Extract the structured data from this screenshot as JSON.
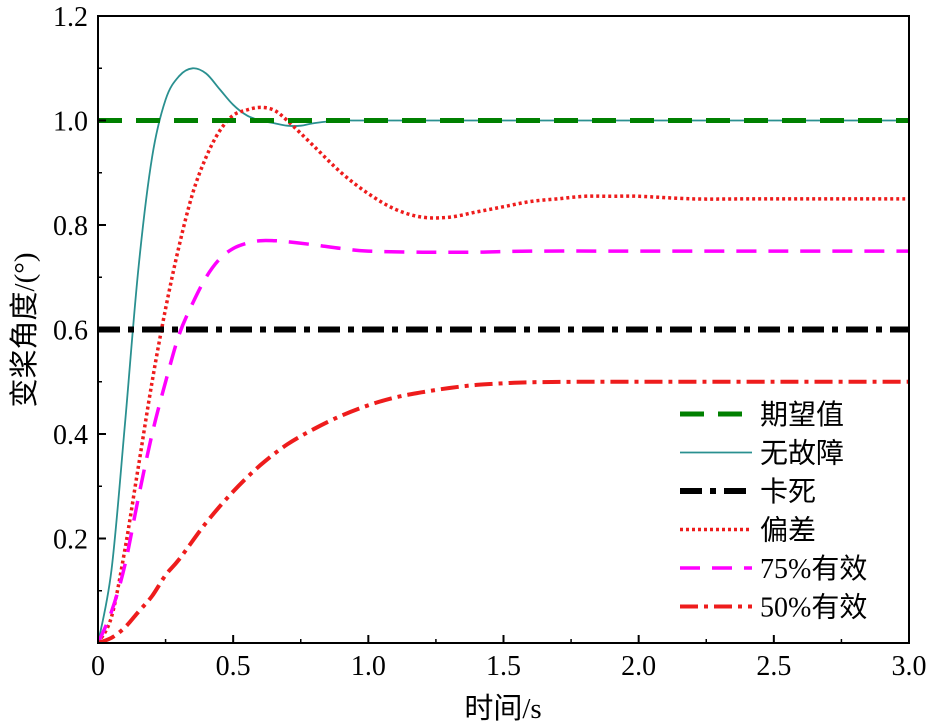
{
  "chart_data": {
    "type": "line",
    "xlabel": "时间/s",
    "ylabel": "变桨角度/(°)",
    "xlim": [
      0,
      3.0
    ],
    "ylim": [
      0,
      1.2
    ],
    "xticks": [
      {
        "value": 0,
        "label": "0"
      },
      {
        "value": 0.5,
        "label": "0.5"
      },
      {
        "value": 1.0,
        "label": "1.0"
      },
      {
        "value": 1.5,
        "label": "1.5"
      },
      {
        "value": 2.0,
        "label": "2.0"
      },
      {
        "value": 2.5,
        "label": "2.5"
      },
      {
        "value": 3.0,
        "label": "3.0"
      }
    ],
    "yticks": [
      {
        "value": 0.2,
        "label": "0.2"
      },
      {
        "value": 0.4,
        "label": "0.4"
      },
      {
        "value": 0.6,
        "label": "0.6"
      },
      {
        "value": 0.8,
        "label": "0.8"
      },
      {
        "value": 1.0,
        "label": "1.0"
      },
      {
        "value": 1.2,
        "label": "1.2"
      }
    ],
    "grid": false,
    "legend_position": "bottom-right",
    "series": [
      {
        "name": "期望值",
        "color": "#008000",
        "style": "dashed",
        "x": [
          0,
          3.0
        ],
        "y": [
          1.0,
          1.0
        ]
      },
      {
        "name": "无故障",
        "color": "#2a9090",
        "style": "solid",
        "x": [
          0,
          0.05,
          0.1,
          0.15,
          0.2,
          0.25,
          0.3,
          0.35,
          0.4,
          0.45,
          0.5,
          0.55,
          0.6,
          0.65,
          0.7,
          0.75,
          0.8,
          0.9,
          1.0,
          1.5,
          2.0,
          2.5,
          3.0
        ],
        "y": [
          0,
          0.14,
          0.42,
          0.72,
          0.93,
          1.04,
          1.085,
          1.1,
          1.09,
          1.06,
          1.03,
          1.01,
          1.0,
          0.995,
          0.99,
          0.99,
          0.995,
          1.0,
          1.0,
          1.0,
          1.0,
          1.0,
          1.0
        ]
      },
      {
        "name": "卡死",
        "color": "#000000",
        "style": "dashdot",
        "x": [
          0,
          3.0
        ],
        "y": [
          0.6,
          0.6
        ]
      },
      {
        "name": "偏差",
        "color": "#ee1c1c",
        "style": "dotted",
        "x": [
          0,
          0.05,
          0.1,
          0.15,
          0.2,
          0.25,
          0.3,
          0.35,
          0.4,
          0.45,
          0.5,
          0.55,
          0.6,
          0.65,
          0.7,
          0.8,
          0.9,
          1.0,
          1.1,
          1.2,
          1.3,
          1.4,
          1.5,
          1.6,
          1.7,
          1.8,
          1.9,
          2.0,
          2.2,
          2.4,
          2.6,
          2.8,
          3.0
        ],
        "y": [
          0,
          0.05,
          0.18,
          0.34,
          0.5,
          0.64,
          0.76,
          0.86,
          0.93,
          0.98,
          1.01,
          1.02,
          1.025,
          1.02,
          1.0,
          0.95,
          0.9,
          0.86,
          0.83,
          0.815,
          0.815,
          0.825,
          0.835,
          0.845,
          0.85,
          0.855,
          0.855,
          0.855,
          0.85,
          0.85,
          0.85,
          0.85,
          0.85
        ]
      },
      {
        "name": "75%有效",
        "color": "#ff00ff",
        "style": "dashed",
        "x": [
          0,
          0.05,
          0.1,
          0.15,
          0.2,
          0.25,
          0.3,
          0.35,
          0.4,
          0.45,
          0.5,
          0.55,
          0.6,
          0.65,
          0.7,
          0.8,
          0.9,
          1.0,
          1.2,
          1.4,
          1.6,
          2.0,
          2.5,
          3.0
        ],
        "y": [
          0,
          0.06,
          0.15,
          0.28,
          0.4,
          0.5,
          0.59,
          0.65,
          0.7,
          0.735,
          0.755,
          0.765,
          0.77,
          0.77,
          0.768,
          0.762,
          0.755,
          0.75,
          0.748,
          0.748,
          0.75,
          0.75,
          0.75,
          0.75
        ]
      },
      {
        "name": "50%有效",
        "color": "#ee1c1c",
        "style": "dashdot",
        "x": [
          0,
          0.05,
          0.1,
          0.15,
          0.2,
          0.25,
          0.3,
          0.4,
          0.5,
          0.6,
          0.7,
          0.8,
          0.9,
          1.0,
          1.1,
          1.2,
          1.3,
          1.4,
          1.5,
          1.6,
          1.8,
          2.0,
          2.5,
          3.0
        ],
        "y": [
          0,
          0.01,
          0.03,
          0.06,
          0.09,
          0.13,
          0.16,
          0.23,
          0.29,
          0.34,
          0.38,
          0.41,
          0.435,
          0.455,
          0.47,
          0.48,
          0.488,
          0.494,
          0.497,
          0.499,
          0.5,
          0.5,
          0.5,
          0.5
        ]
      }
    ]
  }
}
